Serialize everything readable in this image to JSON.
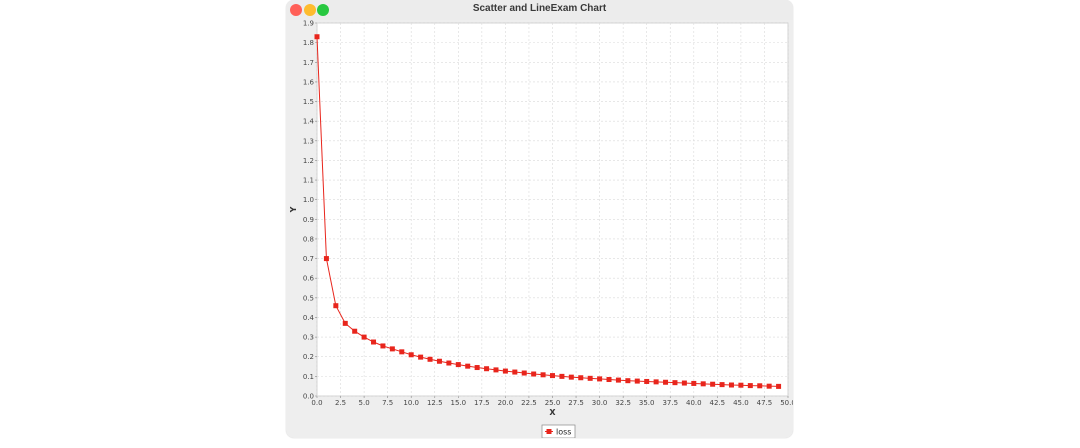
{
  "window": {
    "title": "Scatter and LineExam Chart",
    "traffic_colors": {
      "close": "#ff5f57",
      "minimize": "#febc2e",
      "maximize": "#28c840"
    }
  },
  "colors": {
    "series": "#e8251c",
    "plot_background": "#ffffff",
    "grid": "#d9d9d9"
  },
  "chart_data": {
    "type": "line",
    "title": "",
    "xlabel": "X",
    "ylabel": "Y",
    "xlim": [
      0,
      50
    ],
    "ylim": [
      0,
      1.9
    ],
    "grid": true,
    "legend_position": "bottom-center",
    "x_ticks": [
      "0.0",
      "2.5",
      "5.0",
      "7.5",
      "10.0",
      "12.5",
      "15.0",
      "17.5",
      "20.0",
      "22.5",
      "25.0",
      "27.5",
      "30.0",
      "32.5",
      "35.0",
      "37.5",
      "40.0",
      "42.5",
      "45.0",
      "47.5",
      "50.0"
    ],
    "y_ticks": [
      "0.0",
      "0.1",
      "0.2",
      "0.3",
      "0.4",
      "0.5",
      "0.6",
      "0.7",
      "0.8",
      "0.9",
      "1.0",
      "1.1",
      "1.2",
      "1.3",
      "1.4",
      "1.5",
      "1.6",
      "1.7",
      "1.8",
      "1.9"
    ],
    "series": [
      {
        "name": "loss",
        "marker": "square",
        "x": [
          0,
          1,
          2,
          3,
          4,
          5,
          6,
          7,
          8,
          9,
          10,
          11,
          12,
          13,
          14,
          15,
          16,
          17,
          18,
          19,
          20,
          21,
          22,
          23,
          24,
          25,
          26,
          27,
          28,
          29,
          30,
          31,
          32,
          33,
          34,
          35,
          36,
          37,
          38,
          39,
          40,
          41,
          42,
          43,
          44,
          45,
          46,
          47,
          48,
          49
        ],
        "y": [
          1.83,
          0.7,
          0.46,
          0.37,
          0.33,
          0.3,
          0.275,
          0.255,
          0.24,
          0.225,
          0.21,
          0.198,
          0.187,
          0.177,
          0.168,
          0.16,
          0.152,
          0.145,
          0.139,
          0.133,
          0.127,
          0.122,
          0.117,
          0.112,
          0.108,
          0.104,
          0.1,
          0.096,
          0.093,
          0.09,
          0.087,
          0.084,
          0.081,
          0.078,
          0.076,
          0.074,
          0.072,
          0.07,
          0.068,
          0.066,
          0.064,
          0.062,
          0.06,
          0.058,
          0.056,
          0.055,
          0.053,
          0.052,
          0.05,
          0.049
        ]
      }
    ]
  }
}
